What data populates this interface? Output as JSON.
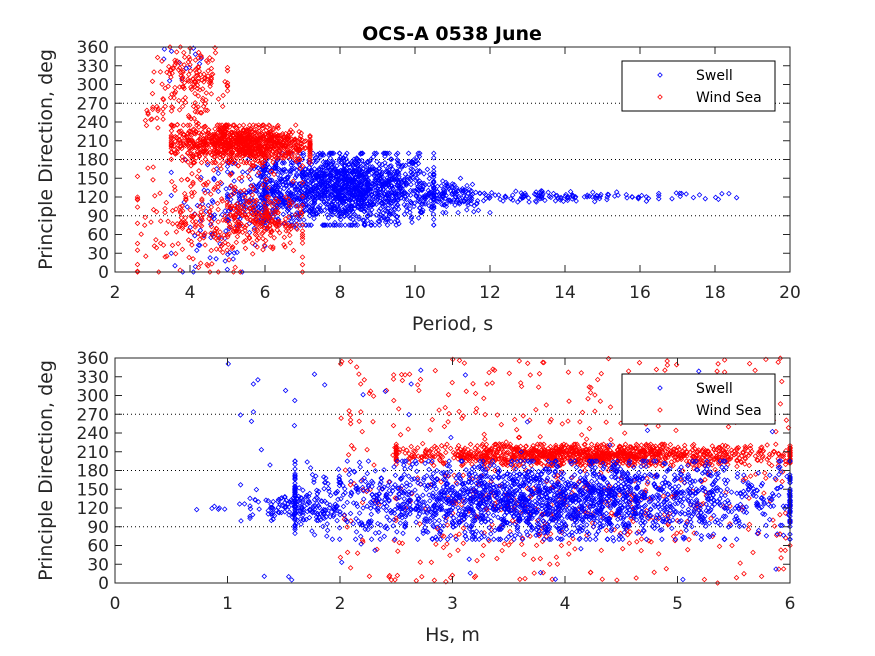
{
  "figure_title": "OCS-A 0538 June",
  "colors": {
    "swell": "#0000ff",
    "wind_sea": "#ff0000",
    "axis": "#262626"
  },
  "chart_data": [
    {
      "type": "scatter",
      "title": "OCS-A 0538 June",
      "xlabel": "Period, s",
      "ylabel": "Principle Direction, deg",
      "xlim": [
        2,
        20
      ],
      "ylim": [
        0,
        360
      ],
      "xticks": [
        "2",
        "4",
        "6",
        "8",
        "10",
        "12",
        "14",
        "16",
        "18",
        "20"
      ],
      "yticks": [
        "0",
        "30",
        "60",
        "90",
        "120",
        "150",
        "180",
        "210",
        "240",
        "270",
        "300",
        "330",
        "360"
      ],
      "reference_lines_y": [
        90,
        180,
        270
      ],
      "legend": {
        "position": "top-right",
        "entries": [
          "Swell",
          "Wind Sea"
        ]
      },
      "marker": "diamond",
      "series": [
        {
          "name": "Swell",
          "description": "Dense cluster between 6-11 s at 80-190 deg, narrowing to a band near 120 deg extending out to ~18.6 s; sparse points at 3-6 s",
          "clusters": [
            {
              "x_range": [
                6.0,
                10.5
              ],
              "y_range": [
                75,
                190
              ],
              "count": 1400
            },
            {
              "x_range": [
                5.0,
                7.0
              ],
              "y_range": [
                70,
                180
              ],
              "count": 250
            },
            {
              "x_range": [
                10.0,
                12.0
              ],
              "y_range": [
                95,
                150
              ],
              "count": 140
            },
            {
              "x_range": [
                11.5,
                16.5
              ],
              "y_range": [
                112,
                130
              ],
              "count": 110
            },
            {
              "x_range": [
                16.5,
                18.6
              ],
              "y_range": [
                115,
                128
              ],
              "count": 14
            },
            {
              "x_range": [
                3.5,
                6.0
              ],
              "y_range": [
                0,
                180
              ],
              "count": 90
            },
            {
              "x_range": [
                3.0,
                4.5
              ],
              "y_range": [
                300,
                360
              ],
              "count": 12
            }
          ]
        },
        {
          "name": "Wind Sea",
          "description": "Dense band at 3.5-7 s around 180-230 deg; cluster at 3-5 s, 270-360 deg; scattered points at 3-7 s, 0-160 deg",
          "clusters": [
            {
              "x_range": [
                3.5,
                7.2
              ],
              "y_range": [
                175,
                235
              ],
              "count": 900
            },
            {
              "x_range": [
                3.0,
                5.0
              ],
              "y_range": [
                265,
                360
              ],
              "count": 140
            },
            {
              "x_range": [
                2.6,
                7.0
              ],
              "y_range": [
                0,
                170
              ],
              "count": 330
            },
            {
              "x_range": [
                5.0,
                7.0
              ],
              "y_range": [
                40,
                120
              ],
              "count": 120
            },
            {
              "x_range": [
                2.8,
                4.5
              ],
              "y_range": [
                230,
                265
              ],
              "count": 40
            }
          ]
        }
      ]
    },
    {
      "type": "scatter",
      "title": "",
      "xlabel": "Hs, m",
      "ylabel": "Principle Direction, deg",
      "xlim": [
        0,
        6
      ],
      "ylim": [
        0,
        360
      ],
      "xticks": [
        "0",
        "1",
        "2",
        "3",
        "4",
        "5",
        "6"
      ],
      "yticks": [
        "0",
        "30",
        "60",
        "90",
        "120",
        "150",
        "180",
        "210",
        "240",
        "270",
        "300",
        "330",
        "360"
      ],
      "reference_lines_y": [
        90,
        180,
        270
      ],
      "legend": {
        "position": "top-right",
        "entries": [
          "Swell",
          "Wind Sea"
        ]
      },
      "marker": "diamond",
      "series": [
        {
          "name": "Swell",
          "description": "Broad band 70-195 deg from Hs ~1.5 to 6 m, strongest near 120 deg; sparse points from 0.5 m",
          "clusters": [
            {
              "x_range": [
                1.6,
                6.0
              ],
              "y_range": [
                70,
                195
              ],
              "count": 2200
            },
            {
              "x_range": [
                1.2,
                2.0
              ],
              "y_range": [
                100,
                140
              ],
              "count": 120
            },
            {
              "x_range": [
                0.5,
                1.2
              ],
              "y_range": [
                110,
                130
              ],
              "count": 8
            },
            {
              "x_range": [
                1.0,
                6.0
              ],
              "y_range": [
                0,
                360
              ],
              "count": 70
            }
          ]
        },
        {
          "name": "Wind Sea",
          "description": "Dense band at 190-220 deg from Hs ~2.5 to 6 m; scattered points across all directions above 1.5 m",
          "clusters": [
            {
              "x_range": [
                2.5,
                6.0
              ],
              "y_range": [
                188,
                222
              ],
              "count": 1100
            },
            {
              "x_range": [
                2.0,
                6.0
              ],
              "y_range": [
                0,
                360
              ],
              "count": 420
            },
            {
              "x_range": [
                2.2,
                6.0
              ],
              "y_range": [
                60,
                180
              ],
              "count": 180
            }
          ]
        }
      ]
    }
  ]
}
